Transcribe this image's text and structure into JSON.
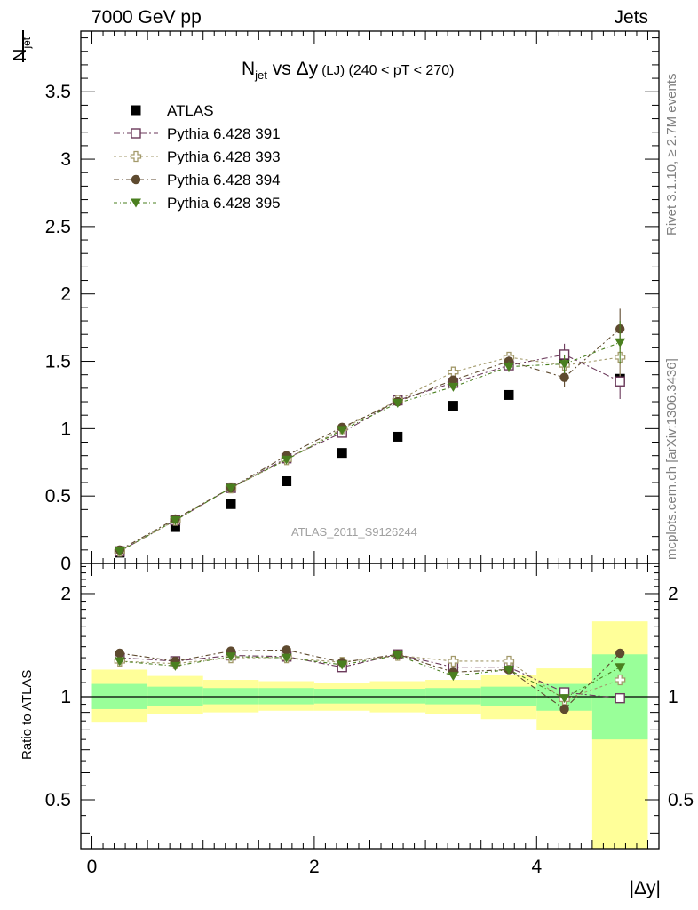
{
  "header": {
    "left": "7000 GeV pp",
    "right": "Jets"
  },
  "side_text": {
    "rivet": "Rivet 3.1.10, ≥ 2.7M events",
    "mcplots": "mcplots.cern.ch [arXiv:1306.3436]"
  },
  "watermark": "ATLAS_2011_S9126244",
  "plot_title": {
    "main": "N",
    "sub": "jet",
    "rest": " vs Δy",
    "small": " (LJ)",
    "cut": " (240 < pT < 270)"
  },
  "ylabel_main": {
    "main": "N",
    "sub": "jet"
  },
  "ylabel_ratio": "Ratio to ATLAS",
  "xlabel": "|Δy|",
  "colors": {
    "data": "#000000",
    "s391": "#6b3a5b",
    "s393": "#a39a6b",
    "s394": "#5e4a2f",
    "s395": "#4a7f1f",
    "band_inner": "#99ff99",
    "band_outer": "#ffff99"
  },
  "chart_data": [
    {
      "type": "scatter",
      "panel": "main",
      "x": [
        0.25,
        0.75,
        1.25,
        1.75,
        2.25,
        2.75,
        3.25,
        3.75,
        4.25,
        4.75
      ],
      "xlim": [
        -0.1,
        5.1
      ],
      "ylim": [
        0,
        3.95
      ],
      "yticks": [
        "0",
        "0.5",
        "1",
        "1.5",
        "2",
        "2.5",
        "3",
        "3.5"
      ],
      "series": [
        {
          "name": "ATLAS",
          "key": "data",
          "marker": "square-filled",
          "values": [
            0.08,
            0.27,
            0.44,
            0.61,
            0.82,
            0.94,
            1.17,
            1.25,
            1.5,
            1.37
          ]
        },
        {
          "name": "Pythia 6.428 391",
          "key": "s391",
          "marker": "square-open",
          "values": [
            0.09,
            0.32,
            0.56,
            0.78,
            0.97,
            1.21,
            1.34,
            1.47,
            1.55,
            1.35
          ],
          "errors": [
            0,
            0,
            0,
            0,
            0,
            0,
            0.02,
            0.04,
            0.08,
            0.13
          ]
        },
        {
          "name": "Pythia 6.428 393",
          "key": "s393",
          "marker": "cross-open",
          "values": [
            0.09,
            0.32,
            0.56,
            0.77,
            1.0,
            1.21,
            1.42,
            1.53,
            1.47,
            1.53
          ],
          "errors": [
            0,
            0,
            0,
            0,
            0,
            0,
            0.02,
            0.04,
            0.08,
            0.14
          ]
        },
        {
          "name": "Pythia 6.428 394",
          "key": "s394",
          "marker": "circle-filled",
          "values": [
            0.1,
            0.33,
            0.56,
            0.8,
            1.01,
            1.2,
            1.36,
            1.5,
            1.38,
            1.74
          ],
          "errors": [
            0,
            0,
            0,
            0,
            0,
            0,
            0.02,
            0.04,
            0.07,
            0.15
          ]
        },
        {
          "name": "Pythia 6.428 395",
          "key": "s395",
          "marker": "triangle-down-filled",
          "values": [
            0.09,
            0.32,
            0.56,
            0.77,
            0.99,
            1.19,
            1.31,
            1.46,
            1.48,
            1.64
          ],
          "errors": [
            0,
            0,
            0,
            0,
            0,
            0,
            0.02,
            0.04,
            0.07,
            0.16
          ]
        }
      ]
    },
    {
      "type": "scatter",
      "panel": "ratio",
      "log_y": true,
      "x": [
        0.25,
        0.75,
        1.25,
        1.75,
        2.25,
        2.75,
        3.25,
        3.75,
        4.25,
        4.75
      ],
      "xlim": [
        -0.1,
        5.1
      ],
      "ylim": [
        0.36,
        2.45
      ],
      "xticks": [
        "0",
        "2",
        "4"
      ],
      "yticks": [
        "0.5",
        "1",
        "2"
      ],
      "bands": {
        "edges": [
          0,
          0.5,
          1,
          1.5,
          2,
          2.5,
          3,
          3.5,
          4,
          4.5,
          5
        ],
        "inner_lo": [
          0.92,
          0.94,
          0.95,
          0.95,
          0.955,
          0.955,
          0.95,
          0.94,
          0.91,
          0.75
        ],
        "inner_hi": [
          1.09,
          1.07,
          1.06,
          1.06,
          1.055,
          1.055,
          1.06,
          1.07,
          1.09,
          1.33
        ],
        "outer_lo": [
          0.84,
          0.89,
          0.9,
          0.91,
          0.91,
          0.9,
          0.89,
          0.86,
          0.8,
          0.36
        ],
        "outer_hi": [
          1.2,
          1.15,
          1.12,
          1.11,
          1.1,
          1.11,
          1.12,
          1.16,
          1.21,
          1.66
        ]
      },
      "series": [
        {
          "name": "Pythia 6.428 391",
          "key": "s391",
          "marker": "square-open",
          "values": [
            1.3,
            1.27,
            1.32,
            1.31,
            1.22,
            1.33,
            1.22,
            1.22,
            1.03,
            0.99
          ]
        },
        {
          "name": "Pythia 6.428 393",
          "key": "s393",
          "marker": "cross-open",
          "values": [
            1.27,
            1.25,
            1.3,
            1.3,
            1.26,
            1.32,
            1.27,
            1.27,
            0.98,
            1.12
          ]
        },
        {
          "name": "Pythia 6.428 394",
          "key": "s394",
          "marker": "circle-filled",
          "values": [
            1.34,
            1.27,
            1.36,
            1.37,
            1.26,
            1.33,
            1.18,
            1.2,
            0.92,
            1.34
          ]
        },
        {
          "name": "Pythia 6.428 395",
          "key": "s395",
          "marker": "triangle-down-filled",
          "values": [
            1.27,
            1.23,
            1.31,
            1.3,
            1.24,
            1.32,
            1.15,
            1.2,
            0.99,
            1.22
          ]
        }
      ]
    }
  ]
}
